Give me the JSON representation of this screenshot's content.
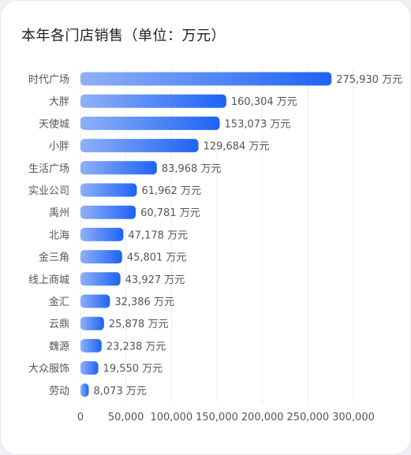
{
  "chart_data": {
    "type": "bar",
    "orientation": "horizontal",
    "title": "本年各门店销售（单位：万元）",
    "unit": "万元",
    "categories": [
      "时代广场",
      "大胖",
      "天使城",
      "小胖",
      "生活广场",
      "实业公司",
      "禹州",
      "北海",
      "金三角",
      "线上商城",
      "金汇",
      "云鼎",
      "魏源",
      "大众服饰",
      "劳动"
    ],
    "values": [
      275930,
      160304,
      153073,
      129684,
      83968,
      61962,
      60781,
      47178,
      45801,
      43927,
      32386,
      25878,
      23238,
      19550,
      8073
    ],
    "value_labels": [
      "275,930 万元",
      "160,304 万元",
      "153,073 万元",
      "129,684 万元",
      "83,968 万元",
      "61,962 万元",
      "60,781 万元",
      "47,178 万元",
      "45,801 万元",
      "43,927 万元",
      "32,386 万元",
      "25,878 万元",
      "23,238 万元",
      "19,550 万元",
      "8,073 万元"
    ],
    "xticks": [
      "0",
      "50,000",
      "100,000",
      "150,000",
      "200,000",
      "250,000",
      "300,000"
    ],
    "xlim": [
      0,
      300000
    ],
    "grid": true,
    "colors": {
      "bar_start": "#8fb0f7",
      "bar_end": "#1e63f5",
      "grid": "#ececec",
      "label": "#555555"
    }
  }
}
